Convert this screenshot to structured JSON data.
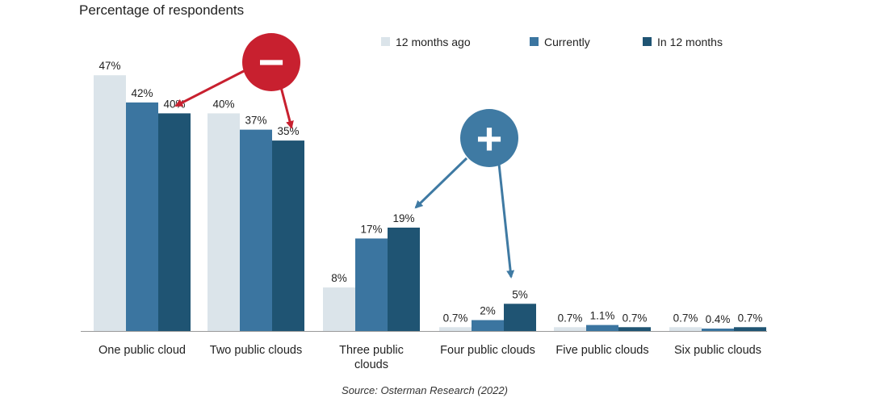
{
  "chart_data": {
    "type": "bar",
    "title": "Percentage of respondents",
    "categories": [
      [
        "One public cloud"
      ],
      [
        "Two public clouds"
      ],
      [
        "Three public",
        "clouds"
      ],
      [
        "Four public clouds"
      ],
      [
        "Five public clouds"
      ],
      [
        "Six public clouds"
      ]
    ],
    "series": [
      {
        "name": "12 months ago",
        "color": "#dbe4ea",
        "values": [
          47,
          40,
          8,
          0.7,
          0.7,
          0.7
        ],
        "labels": [
          "47%",
          "40%",
          "8%",
          "0.7%",
          "0.7%",
          "0.7%"
        ]
      },
      {
        "name": "Currently",
        "color": "#3b75a0",
        "values": [
          42,
          37,
          17,
          2,
          1.1,
          0.4
        ],
        "labels": [
          "42%",
          "37%",
          "17%",
          "2%",
          "1.1%",
          "0.4%"
        ]
      },
      {
        "name": "In 12 months",
        "color": "#1f5473",
        "values": [
          40,
          35,
          19,
          5,
          0.7,
          0.7
        ],
        "labels": [
          "40%",
          "35%",
          "19%",
          "5%",
          "0.7%",
          "0.7%"
        ]
      }
    ],
    "ylim": [
      0,
      50
    ],
    "legend_position": "top-right",
    "source": "Source: Osterman Research (2022)",
    "annotations": [
      {
        "symbol": "−",
        "meaning": "decrease",
        "color": "#c8202f"
      },
      {
        "symbol": "+",
        "meaning": "increase",
        "color": "#3f7aa3"
      }
    ]
  }
}
